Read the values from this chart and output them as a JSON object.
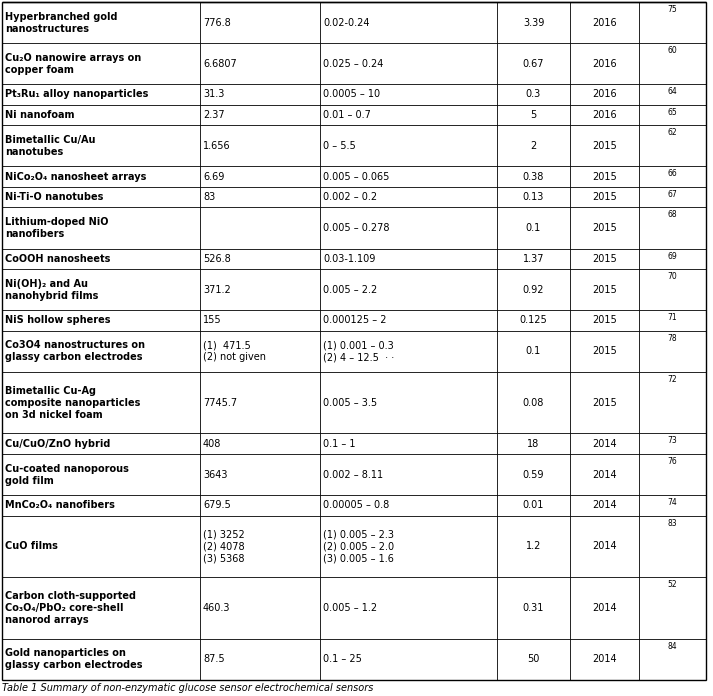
{
  "caption": "Table 1 Summary of non-enzymatic glucose sensor electrochemical sensors",
  "rows": [
    {
      "material": "Hyperbranched gold\nnanostructures",
      "sensitivity": "776.8",
      "linear_range": "0.02-0.24",
      "lod": "3.39",
      "year": "2016",
      "ref": "75"
    },
    {
      "material": "Cu₂O nanowire arrays on\ncopper foam",
      "sensitivity": "6.6807",
      "linear_range": "0.025 – 0.24",
      "lod": "0.67",
      "year": "2016",
      "ref": "60"
    },
    {
      "material": "Pt₃Ru₁ alloy nanoparticles",
      "sensitivity": "31.3",
      "linear_range": "0.0005 – 10",
      "lod": "0.3",
      "year": "2016",
      "ref": "64"
    },
    {
      "material": "Ni nanofoam",
      "sensitivity": "2.37",
      "linear_range": "0.01 – 0.7",
      "lod": "5",
      "year": "2016",
      "ref": "65"
    },
    {
      "material": "Bimetallic Cu/Au\nnanotubes",
      "sensitivity": "1.656",
      "linear_range": "0 – 5.5",
      "lod": "2",
      "year": "2015",
      "ref": "62"
    },
    {
      "material": "NiCo₂O₄ nanosheet arrays",
      "sensitivity": "6.69",
      "linear_range": "0.005 – 0.065",
      "lod": "0.38",
      "year": "2015",
      "ref": "66"
    },
    {
      "material": "Ni-Ti-O nanotubes",
      "sensitivity": "83",
      "linear_range": "0.002 – 0.2",
      "lod": "0.13",
      "year": "2015",
      "ref": "67"
    },
    {
      "material": "Lithium-doped NiO\nnanofibers",
      "sensitivity": "",
      "linear_range": "0.005 – 0.278",
      "lod": "0.1",
      "year": "2015",
      "ref": "68"
    },
    {
      "material": "CoOOH nanosheets",
      "sensitivity": "526.8",
      "linear_range": "0.03-1.109",
      "lod": "1.37",
      "year": "2015",
      "ref": "69"
    },
    {
      "material": "Ni(OH)₂ and Au\nnanohybrid films",
      "sensitivity": "371.2",
      "linear_range": "0.005 – 2.2",
      "lod": "0.92",
      "year": "2015",
      "ref": "70"
    },
    {
      "material": "NiS hollow spheres",
      "sensitivity": "155",
      "linear_range": "0.000125 – 2",
      "lod": "0.125",
      "year": "2015",
      "ref": "71"
    },
    {
      "material": "Co3O4 nanostructures on\nglassy carbon electrodes",
      "sensitivity": "(1)  471.5\n(2) not given",
      "linear_range": "(1) 0.001 – 0.3\n(2) 4 – 12.5  · ·",
      "lod": "0.1",
      "year": "2015",
      "ref": "78"
    },
    {
      "material": "Bimetallic Cu-Ag\ncomposite nanoparticles\non 3d nickel foam",
      "sensitivity": "7745.7",
      "linear_range": "0.005 – 3.5",
      "lod": "0.08",
      "year": "2015",
      "ref": "72"
    },
    {
      "material": "Cu/CuO/ZnO hybrid",
      "sensitivity": "408",
      "linear_range": "0.1 – 1",
      "lod": "18",
      "year": "2014",
      "ref": "73"
    },
    {
      "material": "Cu-coated nanoporous\ngold film",
      "sensitivity": "3643",
      "linear_range": "0.002 – 8.11",
      "lod": "0.59",
      "year": "2014",
      "ref": "76"
    },
    {
      "material": "MnCo₂O₄ nanofibers",
      "sensitivity": "679.5",
      "linear_range": "0.00005 – 0.8",
      "lod": "0.01",
      "year": "2014",
      "ref": "74"
    },
    {
      "material": "CuO films",
      "sensitivity": "(1) 3252\n(2) 4078\n(3) 5368",
      "linear_range": "(1) 0.005 – 2.3\n(2) 0.005 – 2.0\n(3) 0.005 – 1.6",
      "lod": "1.2",
      "year": "2014",
      "ref": "83"
    },
    {
      "material": "Carbon cloth-supported\nCo₃O₄/PbO₂ core-shell\nnanorod arrays",
      "sensitivity": "460.3",
      "linear_range": "0.005 – 1.2",
      "lod": "0.31",
      "year": "2014",
      "ref": "52"
    },
    {
      "material": "Gold nanoparticles on\nglassy carbon electrodes",
      "sensitivity": "87.5",
      "linear_range": "0.1 – 25",
      "lod": "50",
      "year": "2014",
      "ref": "84"
    }
  ],
  "bg_color": "#ffffff",
  "text_color": "#000000",
  "font_size": 7.0,
  "ref_font_size": 5.5,
  "caption_font_size": 7.0,
  "lw": 0.6
}
